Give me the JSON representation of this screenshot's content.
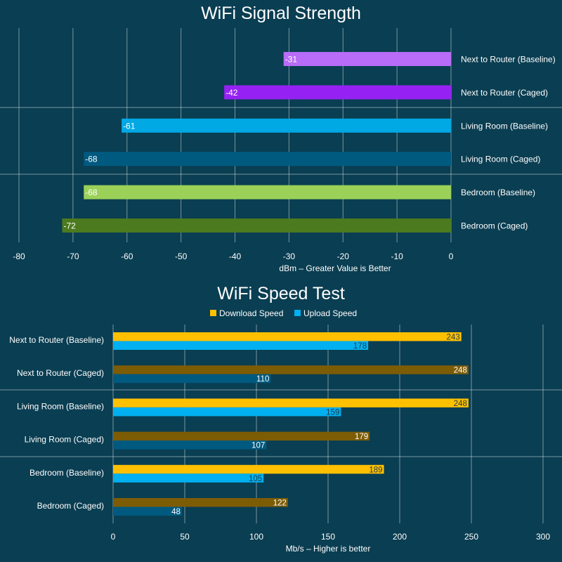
{
  "chart_data": [
    {
      "type": "bar",
      "orientation": "horizontal",
      "title": "WiFi Signal Strength",
      "xlabel": "dBm – Greater Value is Better",
      "xlim": [
        -80,
        0
      ],
      "xticks": [
        "-80",
        "-70",
        "-60",
        "-50",
        "-40",
        "-30",
        "-20",
        "-10",
        "0"
      ],
      "grid": true,
      "categories": [
        "Next to Router (Baseline)",
        "Next to Router (Caged)",
        "Living Room (Baseline)",
        "Living Room (Caged)",
        "Bedroom (Baseline)",
        "Bedroom (Caged)"
      ],
      "values": [
        -31,
        -42,
        -61,
        -68,
        -68,
        -72
      ],
      "colors": [
        "#b86cf7",
        "#9522f2",
        "#00a8e4",
        "#005a80",
        "#9bd159",
        "#4c7a1f"
      ],
      "label_colors": [
        "#ffffff",
        "#ffffff",
        "#ffffff",
        "#ffffff",
        "#ffffff",
        "#ffffff"
      ]
    },
    {
      "type": "bar",
      "orientation": "horizontal",
      "title": "WiFi Speed Test",
      "xlabel": "Mb/s – Higher is better",
      "xlim": [
        0,
        300
      ],
      "xticks": [
        "0",
        "50",
        "100",
        "150",
        "200",
        "250",
        "300"
      ],
      "grid": true,
      "legend_position": "top",
      "categories": [
        "Next to Router (Baseline)",
        "Next to Router (Caged)",
        "Living Room (Baseline)",
        "Living Room (Caged)",
        "Bedroom (Baseline)",
        "Bedroom (Caged)"
      ],
      "series": [
        {
          "name": "Download Speed",
          "values": [
            243,
            248,
            248,
            179,
            189,
            122
          ],
          "color": "#ffc000",
          "bar_colors": [
            "#ffc000",
            "#7d5c06",
            "#ffc000",
            "#7d5c06",
            "#ffc000",
            "#7d5c06"
          ]
        },
        {
          "name": "Upload Speed",
          "values": [
            178,
            110,
            159,
            107,
            105,
            48
          ],
          "color": "#00b0f0",
          "bar_colors": [
            "#00b0f0",
            "#005a80",
            "#00b0f0",
            "#005a80",
            "#00b0f0",
            "#005a80"
          ]
        }
      ]
    }
  ]
}
